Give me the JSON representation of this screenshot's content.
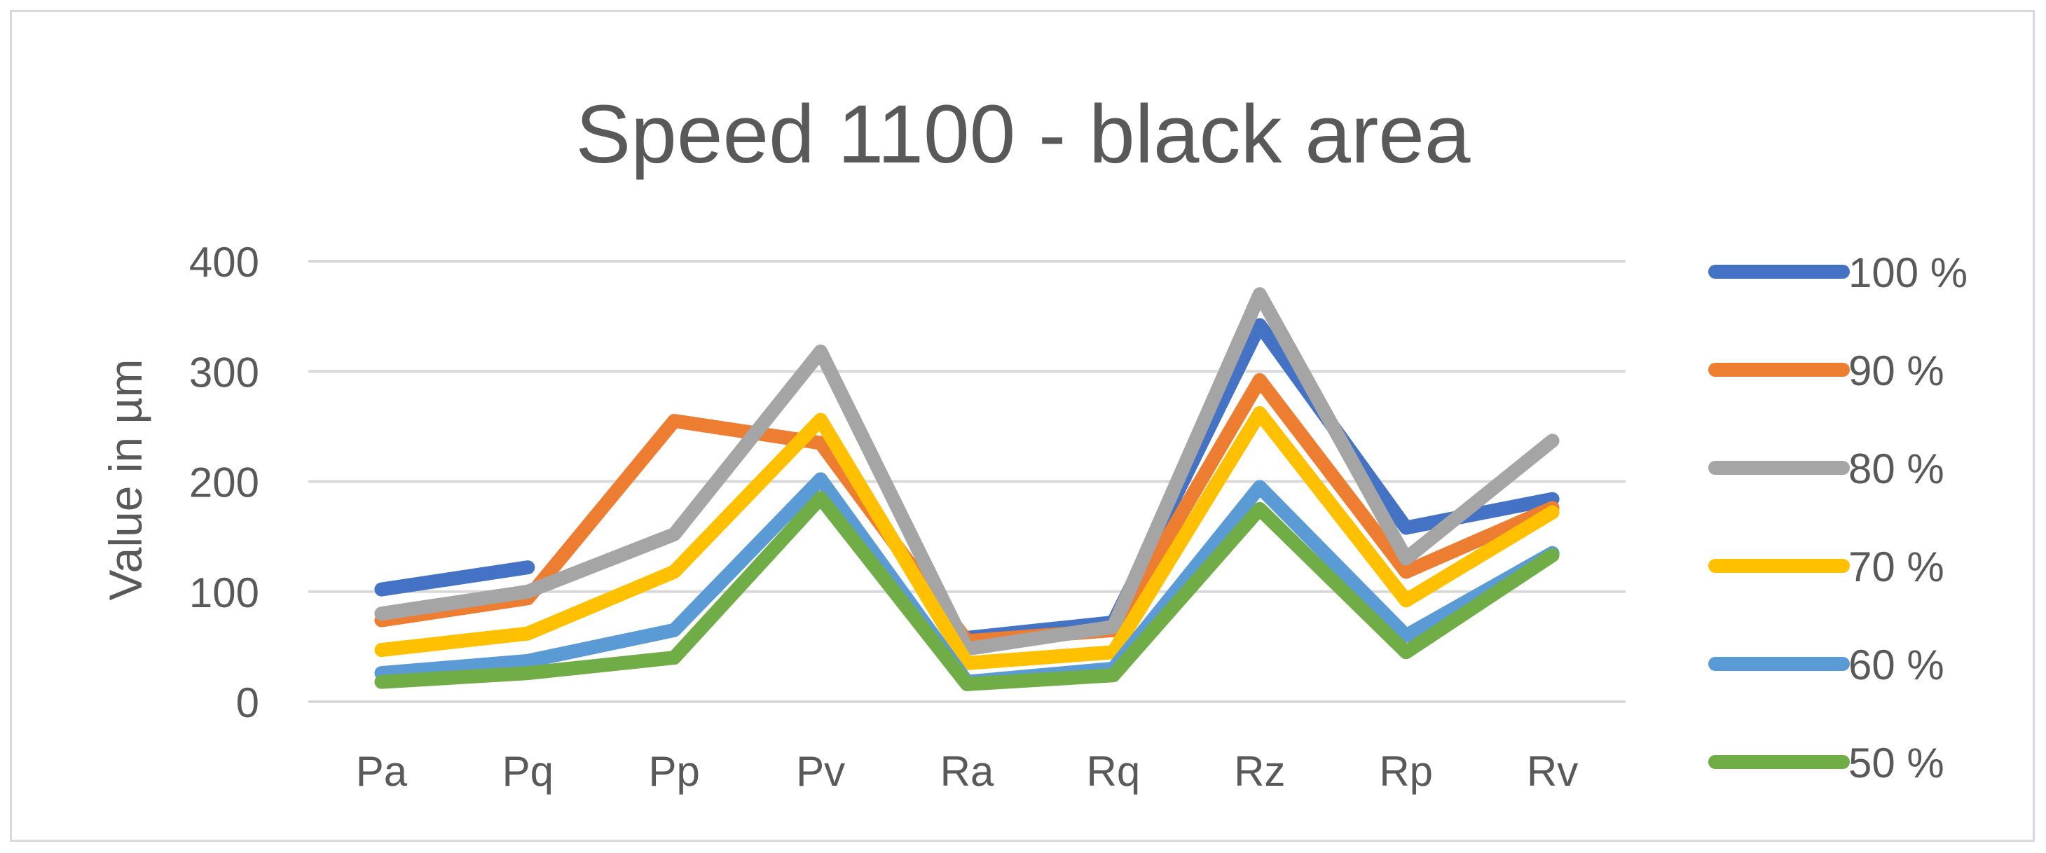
{
  "chart_data": {
    "type": "line",
    "title": "Speed 1100 - black area",
    "xlabel": "",
    "ylabel": "Value in µm",
    "ylim": [
      0,
      400
    ],
    "yticks": [
      0,
      100,
      200,
      300,
      400
    ],
    "grid": true,
    "legend_position": "right",
    "categories": [
      "Pa",
      "Pq",
      "Pp",
      "Pv",
      "Ra",
      "Rq",
      "Rz",
      "Rp",
      "Rv"
    ],
    "series": [
      {
        "name": "100 %",
        "color": "#4472c4",
        "values": [
          102,
          122,
          null,
          null,
          58,
          72,
          342,
          158,
          184
        ]
      },
      {
        "name": "90 %",
        "color": "#ed7d31",
        "values": [
          74,
          94,
          255,
          235,
          55,
          65,
          292,
          118,
          176
        ]
      },
      {
        "name": "80 %",
        "color": "#a5a5a5",
        "values": [
          80,
          100,
          152,
          318,
          48,
          68,
          370,
          130,
          237
        ]
      },
      {
        "name": "70 %",
        "color": "#ffc000",
        "values": [
          47,
          62,
          118,
          256,
          35,
          45,
          262,
          92,
          172
        ]
      },
      {
        "name": "60 %",
        "color": "#5b9bd5",
        "values": [
          26,
          37,
          65,
          202,
          18,
          30,
          195,
          60,
          135
        ]
      },
      {
        "name": "50 %",
        "color": "#70ad47",
        "values": [
          18,
          26,
          40,
          185,
          16,
          24,
          175,
          45,
          133
        ]
      }
    ]
  }
}
